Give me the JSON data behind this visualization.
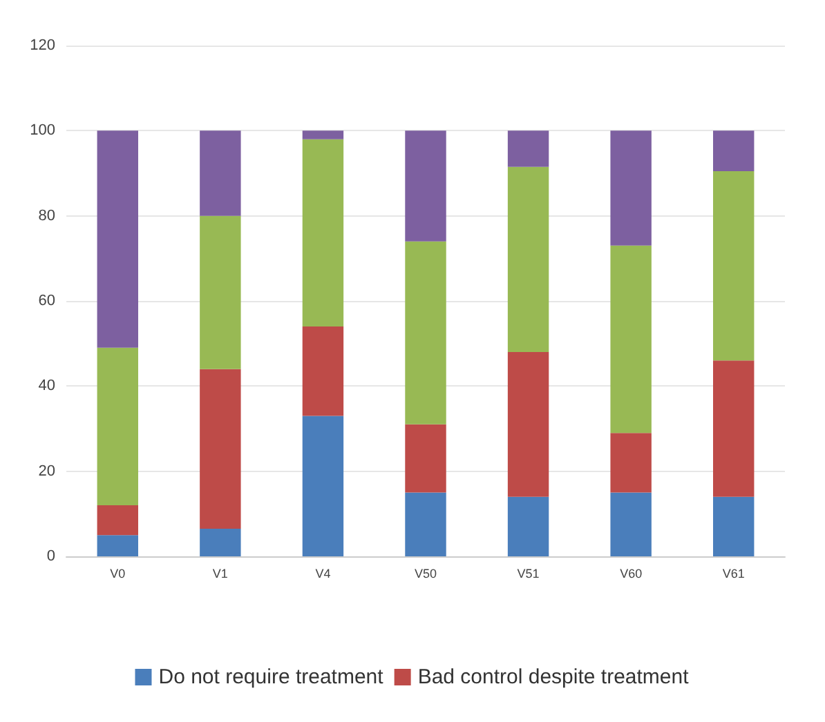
{
  "chart_data": {
    "type": "bar",
    "stacked": true,
    "categories": [
      "V0",
      "V1",
      "V4",
      "V50",
      "V51",
      "V60",
      "V61"
    ],
    "series": [
      {
        "name": "Do not require treatment",
        "color": "#4a7ebb",
        "values": [
          5,
          6.5,
          33,
          15,
          14,
          15,
          14
        ]
      },
      {
        "name": "Bad control despite treatment",
        "color": "#be4b48",
        "values": [
          7,
          37.5,
          21,
          16,
          34,
          14,
          32
        ]
      },
      {
        "color": "#98b954",
        "values": [
          37,
          36,
          44,
          43,
          43.5,
          44,
          44.5
        ]
      },
      {
        "color": "#7d60a0",
        "values": [
          51,
          20,
          2,
          26,
          8.5,
          27,
          9.5
        ]
      }
    ],
    "ylim": [
      0,
      120
    ],
    "yticks": [
      0,
      20,
      40,
      60,
      80,
      100,
      120
    ],
    "grid": "y",
    "legend": "bottom"
  }
}
